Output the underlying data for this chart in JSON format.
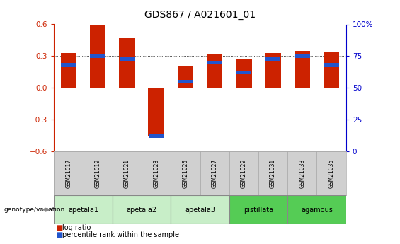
{
  "title": "GDS867 / A021601_01",
  "samples": [
    "GSM21017",
    "GSM21019",
    "GSM21021",
    "GSM21023",
    "GSM21025",
    "GSM21027",
    "GSM21029",
    "GSM21031",
    "GSM21033",
    "GSM21035"
  ],
  "log_ratio": [
    0.33,
    0.6,
    0.47,
    -0.46,
    0.2,
    0.32,
    0.27,
    0.33,
    0.35,
    0.34
  ],
  "percentile_pct": [
    68,
    75,
    73,
    12,
    55,
    70,
    62,
    73,
    75,
    68
  ],
  "groups": [
    {
      "name": "apetala1",
      "start": 0,
      "end": 2,
      "color": "#c8eec8"
    },
    {
      "name": "apetala2",
      "start": 2,
      "end": 4,
      "color": "#c8eec8"
    },
    {
      "name": "apetala3",
      "start": 4,
      "end": 6,
      "color": "#c8eec8"
    },
    {
      "name": "pistillata",
      "start": 6,
      "end": 8,
      "color": "#55cc55"
    },
    {
      "name": "agamous",
      "start": 8,
      "end": 10,
      "color": "#55cc55"
    }
  ],
  "ylim": [
    -0.6,
    0.6
  ],
  "yticks_left": [
    -0.6,
    -0.3,
    0.0,
    0.3,
    0.6
  ],
  "yticks_right": [
    0,
    25,
    50,
    75,
    100
  ],
  "bar_color_red": "#cc2200",
  "bar_color_blue": "#2255cc",
  "title_fontsize": 10,
  "axis_color_red": "#cc2200",
  "axis_color_blue": "#0000cc",
  "background_color": "#ffffff",
  "grid_color": "#111111",
  "zero_line_color": "#cc2200",
  "sample_box_color": "#d0d0d0",
  "sample_box_edge": "#aaaaaa"
}
